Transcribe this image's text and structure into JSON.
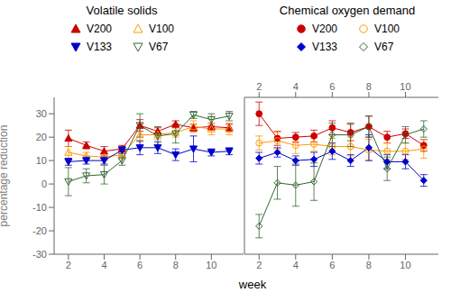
{
  "chart_data": [
    {
      "type": "line",
      "title": "Volatile solids",
      "xlabel": "week",
      "ylabel": "percentage reduction",
      "x": [
        2,
        3,
        4,
        5,
        6,
        7,
        8,
        9,
        10,
        11
      ],
      "xlim": [
        1.2,
        11.8
      ],
      "xticks": [
        2,
        4,
        6,
        8,
        10
      ],
      "ylim": [
        -30,
        37
      ],
      "yticks": [
        -30,
        -20,
        -10,
        0,
        10,
        20,
        30
      ],
      "grid": false,
      "series": [
        {
          "name": "V200",
          "color": "#cc0000",
          "marker": "triangle-up",
          "values": [
            19.5,
            16.5,
            14.0,
            15.0,
            25.0,
            22.5,
            25.5,
            24.0,
            24.5,
            24.0
          ],
          "errors": [
            3.5,
            1.5,
            2.0,
            1.5,
            2.5,
            1.5,
            1.5,
            1.5,
            1.5,
            1.5
          ]
        },
        {
          "name": "V100",
          "color": "#ff9900",
          "marker": "triangle-up-open",
          "values": [
            13.5,
            12.0,
            11.5,
            12.5,
            21.0,
            21.0,
            22.0,
            24.5,
            23.5,
            23.5
          ],
          "errors": [
            2.5,
            1.5,
            1.5,
            2.0,
            3.0,
            2.0,
            2.0,
            2.5,
            2.5,
            2.5
          ]
        },
        {
          "name": "V133",
          "color": "#0000cc",
          "marker": "triangle-down",
          "values": [
            9.5,
            10.0,
            10.0,
            14.5,
            15.5,
            15.5,
            12.5,
            15.0,
            13.5,
            14.0
          ],
          "errors": [
            1.5,
            1.5,
            1.5,
            1.5,
            3.0,
            2.5,
            2.5,
            5.5,
            1.5,
            1.5
          ]
        },
        {
          "name": "V67",
          "color": "#336633",
          "marker": "triangle-down-open",
          "values": [
            1.0,
            3.5,
            4.0,
            10.0,
            25.0,
            20.5,
            21.5,
            29.5,
            27.5,
            29.0
          ],
          "errors": [
            6.0,
            3.0,
            4.0,
            2.0,
            5.0,
            4.0,
            4.0,
            1.5,
            2.5,
            2.0
          ]
        }
      ]
    },
    {
      "type": "line",
      "title": "Chemical oxygen demand",
      "tick_labels": "x",
      "x": [
        2,
        3,
        4,
        5,
        6,
        7,
        8,
        9,
        10,
        11
      ],
      "xlim": [
        1.2,
        11.8
      ],
      "xticks": [
        2,
        4,
        6,
        8,
        10
      ],
      "ylim": [
        -30,
        37
      ],
      "yticks": [
        -30,
        -20,
        -10,
        0,
        10,
        20,
        30
      ],
      "grid": false,
      "series": [
        {
          "name": "V200",
          "color": "#cc0000",
          "marker": "circle",
          "values": [
            30.0,
            19.5,
            20.0,
            20.5,
            24.0,
            22.0,
            24.5,
            20.0,
            21.5,
            16.5
          ],
          "errors": [
            5.0,
            3.0,
            2.0,
            2.5,
            3.0,
            3.5,
            4.5,
            2.5,
            2.0,
            2.5
          ]
        },
        {
          "name": "V100",
          "color": "#ff9900",
          "marker": "circle-open",
          "values": [
            17.5,
            18.5,
            16.5,
            17.0,
            16.0,
            16.0,
            14.5,
            14.0,
            14.0,
            15.0
          ],
          "errors": [
            3.0,
            3.5,
            3.5,
            3.0,
            3.5,
            4.0,
            4.5,
            3.5,
            3.5,
            4.0
          ]
        },
        {
          "name": "V133",
          "color": "#0000cc",
          "marker": "diamond",
          "values": [
            11.0,
            13.5,
            10.0,
            10.5,
            14.0,
            10.0,
            15.5,
            9.5,
            9.5,
            1.5
          ],
          "errors": [
            2.5,
            2.0,
            2.0,
            3.0,
            3.5,
            2.5,
            5.5,
            3.0,
            3.0,
            2.5
          ]
        },
        {
          "name": "V67",
          "color": "#336633",
          "marker": "diamond-open",
          "values": [
            -18.0,
            0.5,
            -0.5,
            1.0,
            21.0,
            21.0,
            24.5,
            6.5,
            21.0,
            23.5
          ],
          "errors": [
            5.0,
            7.0,
            9.0,
            8.0,
            5.0,
            5.0,
            4.5,
            5.0,
            3.5,
            3.5
          ]
        }
      ]
    }
  ]
}
